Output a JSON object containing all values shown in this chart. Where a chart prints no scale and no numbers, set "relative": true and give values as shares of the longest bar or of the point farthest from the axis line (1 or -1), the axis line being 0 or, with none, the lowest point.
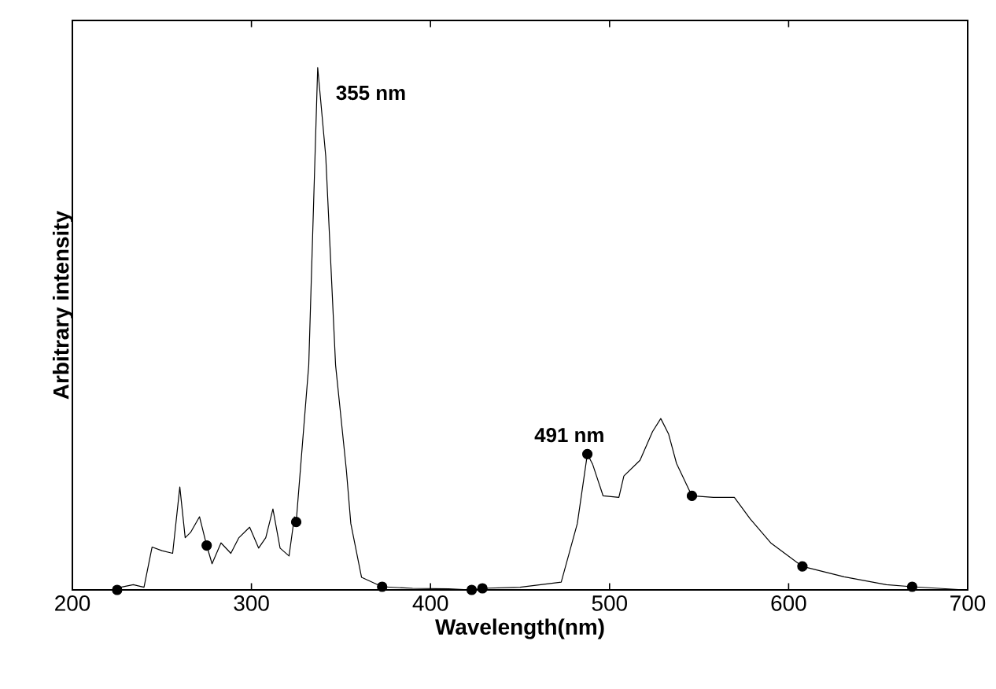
{
  "chart_data": {
    "type": "line",
    "relative": true,
    "xlabel": "Wavelength(nm)",
    "ylabel": "Arbitrary intensity",
    "xlim": [
      200,
      700
    ],
    "xticks": [
      200,
      300,
      400,
      500,
      600,
      700
    ],
    "annotations": [
      {
        "text": "355  nm",
        "x": 337,
        "y": 1.0
      },
      {
        "text": "491  nm",
        "x": 488,
        "y": 0.26
      }
    ],
    "series": [
      {
        "color": "#000000",
        "x": [
          225,
          227,
          234,
          240,
          244.5,
          250,
          256,
          260,
          263,
          266,
          271,
          275,
          278,
          283,
          288.5,
          293,
          299,
          304,
          308,
          312,
          316,
          321,
          324,
          325,
          332,
          337,
          341.5,
          347,
          353,
          355.5,
          361.5,
          373,
          390,
          410,
          423,
          429,
          450,
          473,
          482,
          487.6,
          490.6,
          496.4,
          505.2,
          508,
          517,
          524,
          528.6,
          533,
          537.4,
          546,
          558,
          569.7,
          578.5,
          590,
          607.7,
          631,
          654.6,
          669,
          698.5
        ],
        "values": [
          0,
          0.005,
          0.01,
          0.005,
          0.082,
          0.075,
          0.07,
          0.197,
          0.1,
          0.11,
          0.14,
          0.085,
          0.05,
          0.09,
          0.07,
          0.1,
          0.12,
          0.08,
          0.1,
          0.155,
          0.08,
          0.065,
          0.14,
          0.13,
          0.43,
          1.0,
          0.83,
          0.43,
          0.23,
          0.127,
          0.024,
          0.006,
          0.003,
          0.002,
          0,
          0.003,
          0.005,
          0.015,
          0.127,
          0.26,
          0.24,
          0.18,
          0.177,
          0.218,
          0.248,
          0.303,
          0.328,
          0.298,
          0.242,
          0.18,
          0.177,
          0.177,
          0.136,
          0.09,
          0.045,
          0.025,
          0.01,
          0.006,
          0
        ]
      },
      {
        "type": "scatter",
        "marker": "circle",
        "color": "#000000",
        "x": [
          225,
          275,
          325,
          373,
          423
        ],
        "values": [
          0,
          0.085,
          0.13,
          0.006,
          0
        ]
      },
      {
        "type": "scatter",
        "marker": "circle",
        "color": "#000000",
        "x": [
          429,
          487.6,
          546,
          607.7,
          669
        ],
        "values": [
          0.003,
          0.26,
          0.18,
          0.045,
          0.006
        ]
      }
    ]
  }
}
